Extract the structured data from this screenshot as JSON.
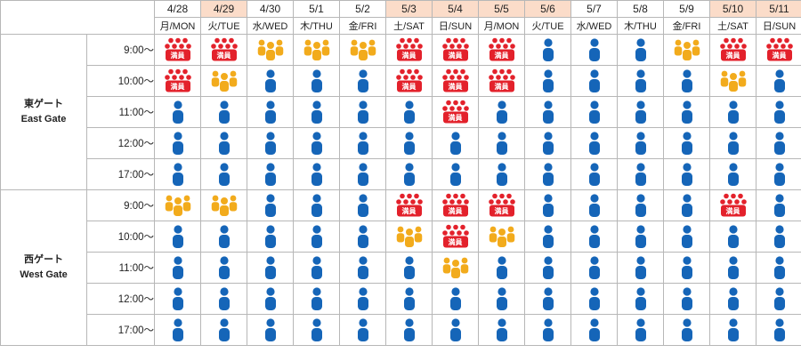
{
  "dates": [
    {
      "date": "4/28",
      "day": "月/MON",
      "holiday": false
    },
    {
      "date": "4/29",
      "day": "火/TUE",
      "holiday": true
    },
    {
      "date": "4/30",
      "day": "水/WED",
      "holiday": false
    },
    {
      "date": "5/1",
      "day": "木/THU",
      "holiday": false
    },
    {
      "date": "5/2",
      "day": "金/FRI",
      "holiday": false
    },
    {
      "date": "5/3",
      "day": "土/SAT",
      "holiday": true
    },
    {
      "date": "5/4",
      "day": "日/SUN",
      "holiday": true
    },
    {
      "date": "5/5",
      "day": "月/MON",
      "holiday": true
    },
    {
      "date": "5/6",
      "day": "火/TUE",
      "holiday": true
    },
    {
      "date": "5/7",
      "day": "水/WED",
      "holiday": false
    },
    {
      "date": "5/8",
      "day": "木/THU",
      "holiday": false
    },
    {
      "date": "5/9",
      "day": "金/FRI",
      "holiday": false
    },
    {
      "date": "5/10",
      "day": "土/SAT",
      "holiday": true
    },
    {
      "date": "5/11",
      "day": "日/SUN",
      "holiday": true
    }
  ],
  "full_label": "満員",
  "colors": {
    "free": "#1565b8",
    "busy": "#f2ab1c",
    "full": "#e3212b",
    "holiday_header": "#fbdcc9",
    "grid": "#b7b7b7"
  },
  "levels": {
    "free": "person-icon",
    "busy": "crowd-icon",
    "full": "full-capacity-icon"
  },
  "gates": [
    {
      "name_jp": "東ゲート",
      "name_en": "East Gate",
      "rows": [
        {
          "time": "9:00～",
          "levels": [
            "full",
            "full",
            "busy",
            "busy",
            "busy",
            "full",
            "full",
            "full",
            "free",
            "free",
            "free",
            "busy",
            "full",
            "full"
          ]
        },
        {
          "time": "10:00～",
          "levels": [
            "full",
            "busy",
            "free",
            "free",
            "free",
            "full",
            "full",
            "full",
            "free",
            "free",
            "free",
            "free",
            "busy",
            "free"
          ]
        },
        {
          "time": "11:00～",
          "levels": [
            "free",
            "free",
            "free",
            "free",
            "free",
            "free",
            "full",
            "free",
            "free",
            "free",
            "free",
            "free",
            "free",
            "free"
          ]
        },
        {
          "time": "12:00～",
          "levels": [
            "free",
            "free",
            "free",
            "free",
            "free",
            "free",
            "free",
            "free",
            "free",
            "free",
            "free",
            "free",
            "free",
            "free"
          ]
        },
        {
          "time": "17:00～",
          "levels": [
            "free",
            "free",
            "free",
            "free",
            "free",
            "free",
            "free",
            "free",
            "free",
            "free",
            "free",
            "free",
            "free",
            "free"
          ]
        }
      ]
    },
    {
      "name_jp": "西ゲート",
      "name_en": "West Gate",
      "rows": [
        {
          "time": "9:00～",
          "levels": [
            "busy",
            "busy",
            "free",
            "free",
            "free",
            "full",
            "full",
            "full",
            "free",
            "free",
            "free",
            "free",
            "full",
            "free"
          ]
        },
        {
          "time": "10:00～",
          "levels": [
            "free",
            "free",
            "free",
            "free",
            "free",
            "busy",
            "full",
            "busy",
            "free",
            "free",
            "free",
            "free",
            "free",
            "free"
          ]
        },
        {
          "time": "11:00～",
          "levels": [
            "free",
            "free",
            "free",
            "free",
            "free",
            "free",
            "busy",
            "free",
            "free",
            "free",
            "free",
            "free",
            "free",
            "free"
          ]
        },
        {
          "time": "12:00～",
          "levels": [
            "free",
            "free",
            "free",
            "free",
            "free",
            "free",
            "free",
            "free",
            "free",
            "free",
            "free",
            "free",
            "free",
            "free"
          ]
        },
        {
          "time": "17:00～",
          "levels": [
            "free",
            "free",
            "free",
            "free",
            "free",
            "free",
            "free",
            "free",
            "free",
            "free",
            "free",
            "free",
            "free",
            "free"
          ]
        }
      ]
    }
  ]
}
